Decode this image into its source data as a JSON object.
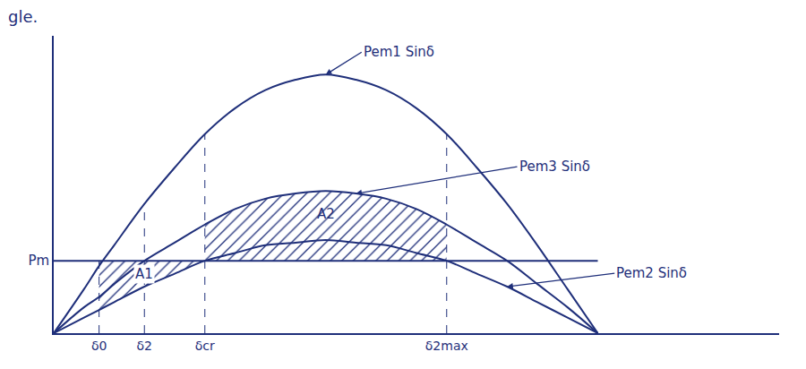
{
  "chart_data": {
    "type": "line",
    "title": "gle.",
    "x": [
      0,
      10,
      15,
      20,
      30,
      40,
      50,
      60,
      70,
      80,
      90,
      100,
      110,
      120,
      130,
      140,
      150,
      160,
      170,
      180
    ],
    "series": [
      {
        "name": "Pem1 Sinδ",
        "color": "#1f2f7a",
        "values": [
          0,
          0.17,
          0.26,
          0.34,
          0.5,
          0.64,
          0.77,
          0.87,
          0.94,
          0.98,
          1,
          0.98,
          0.94,
          0.87,
          0.77,
          0.64,
          0.5,
          0.34,
          0.17,
          0
        ]
      },
      {
        "name": "Pem3 Sinδ",
        "color": "#1f2f7a",
        "values": [
          0,
          0.1,
          0.14,
          0.19,
          0.28,
          0.35,
          0.42,
          0.48,
          0.52,
          0.54,
          0.55,
          0.54,
          0.52,
          0.48,
          0.42,
          0.35,
          0.28,
          0.19,
          0.1,
          0
        ]
      },
      {
        "name": "Pem2 Sinδ",
        "color": "#1f2f7a",
        "values": [
          0,
          0.06,
          0.09,
          0.12,
          0.18,
          0.23,
          0.28,
          0.31,
          0.34,
          0.35,
          0.36,
          0.35,
          0.34,
          0.31,
          0.28,
          0.23,
          0.18,
          0.12,
          0.06,
          0
        ]
      },
      {
        "name": "Pm",
        "color": "#1f2f7a",
        "values": [
          0.28,
          0.28,
          0.28,
          0.28,
          0.28,
          0.28,
          0.28,
          0.28,
          0.28,
          0.28,
          0.28,
          0.28,
          0.28,
          0.28,
          0.28,
          0.28,
          0.28,
          0.28,
          0.28,
          0.28
        ]
      }
    ],
    "areas": [
      {
        "label": "A1",
        "from": 15,
        "to": 50,
        "lower": "Pem2 Sinδ",
        "upper": "Pm"
      },
      {
        "label": "A2",
        "from": 50,
        "to": 130,
        "lower": "Pm",
        "upper": "Pem3 Sinδ"
      }
    ],
    "xlim": [
      0,
      240
    ],
    "ylim": [
      0,
      1.15
    ],
    "xticks": [
      {
        "value": 15,
        "label": "δ0"
      },
      {
        "value": 30,
        "label": "δ2"
      },
      {
        "value": 50,
        "label": "δcr"
      },
      {
        "value": 130,
        "label": "δ2max"
      }
    ],
    "yticks": [
      {
        "value": 0.28,
        "label": "Pm"
      }
    ],
    "grid": false
  }
}
